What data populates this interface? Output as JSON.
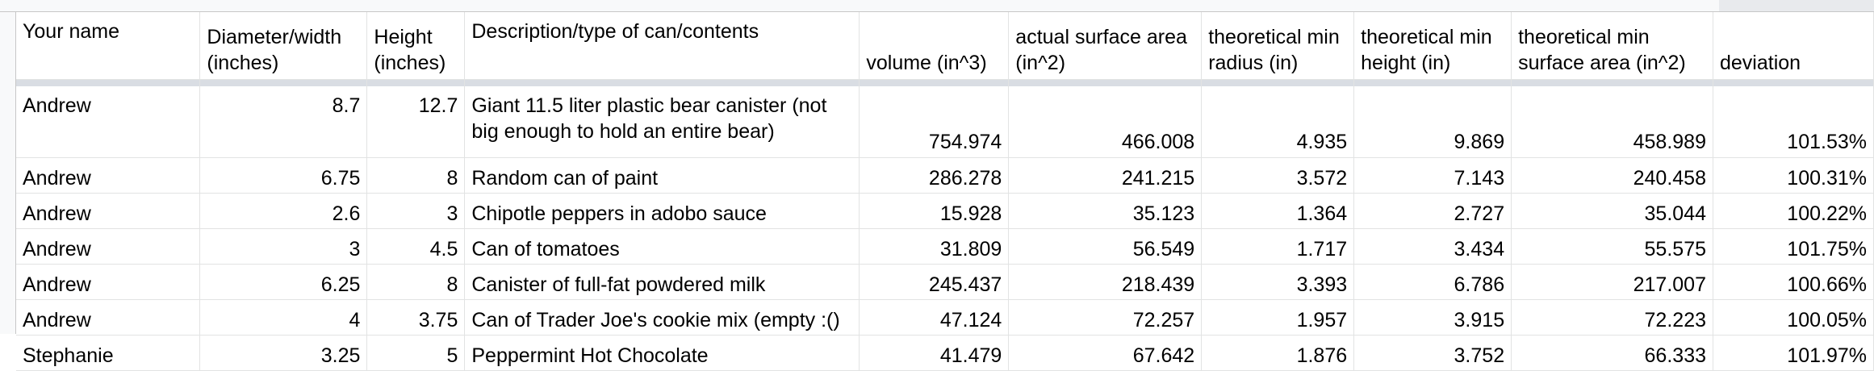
{
  "columns": [
    "Your name",
    "Diameter/width (inches)",
    "Height (inches)",
    "Description/type of can/contents",
    "volume (in^3)",
    "actual surface area (in^2)",
    "theoretical min radius (in)",
    "theoretical min height (in)",
    "theoretical min surface area (in^2)",
    "deviation"
  ],
  "rows": [
    [
      "Andrew",
      "8.7",
      "12.7",
      "Giant 11.5 liter plastic bear canister (not big enough to hold an entire bear)",
      "754.974",
      "466.008",
      "4.935",
      "9.869",
      "458.989",
      "101.53%"
    ],
    [
      "Andrew",
      "6.75",
      "8",
      "Random can of paint",
      "286.278",
      "241.215",
      "3.572",
      "7.143",
      "240.458",
      "100.31%"
    ],
    [
      "Andrew",
      "2.6",
      "3",
      "Chipotle peppers in adobo sauce",
      "15.928",
      "35.123",
      "1.364",
      "2.727",
      "35.044",
      "100.22%"
    ],
    [
      "Andrew",
      "3",
      "4.5",
      "Can of tomatoes",
      "31.809",
      "56.549",
      "1.717",
      "3.434",
      "55.575",
      "101.75%"
    ],
    [
      "Andrew",
      "6.25",
      "8",
      "Canister of full-fat powdered milk",
      "245.437",
      "218.439",
      "3.393",
      "6.786",
      "217.007",
      "100.66%"
    ],
    [
      "Andrew",
      "4",
      "3.75",
      "Can of Trader Joe's cookie mix (empty :()",
      "47.124",
      "72.257",
      "1.957",
      "3.915",
      "72.223",
      "100.05%"
    ],
    [
      "Stephanie",
      "3.25",
      "5",
      "Peppermint Hot Chocolate",
      "41.479",
      "67.642",
      "1.876",
      "3.752",
      "66.333",
      "101.97%"
    ]
  ]
}
